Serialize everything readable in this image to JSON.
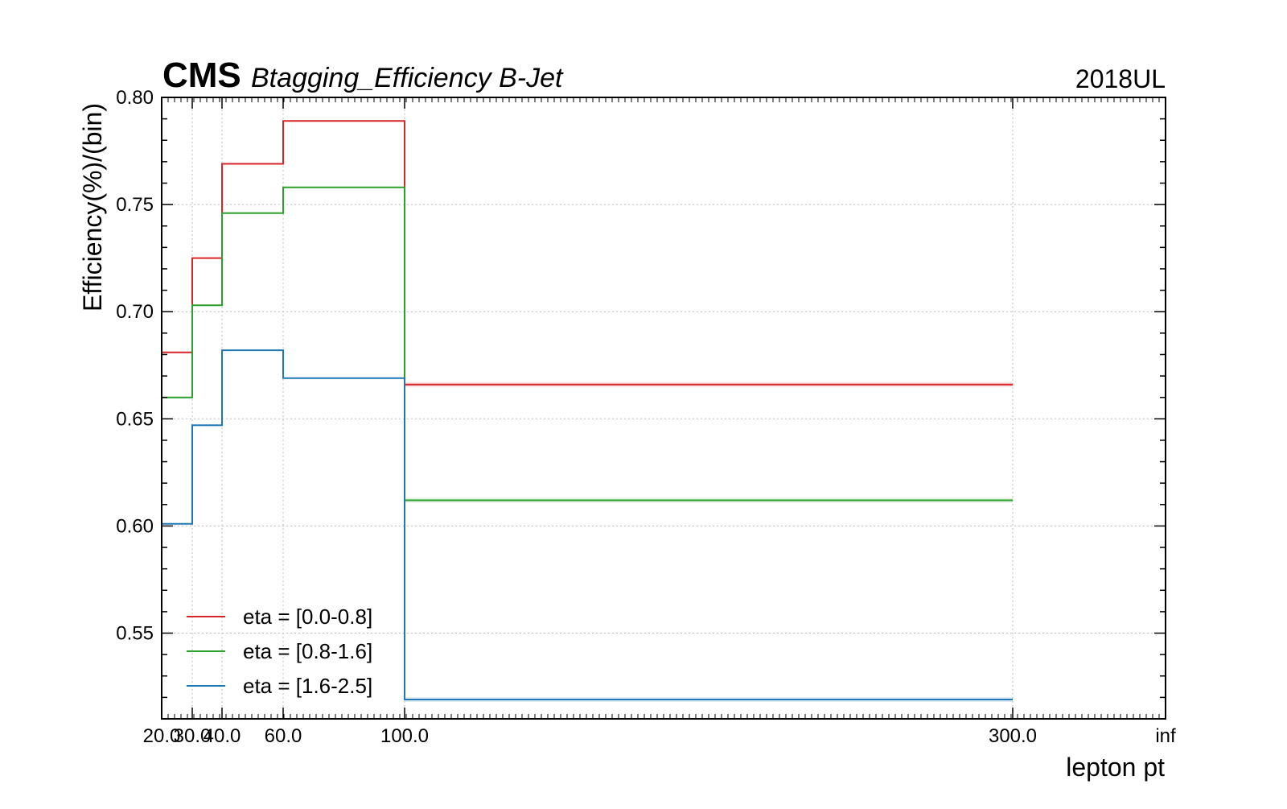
{
  "header": {
    "experiment": "CMS",
    "subtitle": "Btagging_Efficiency B-Jet",
    "era": "2018UL"
  },
  "colors": {
    "red": "#d62728",
    "green": "#2ca02c",
    "blue": "#1f77b4",
    "grid": "#bdbdbd",
    "axis": "#000000"
  },
  "chart_data": {
    "type": "line",
    "style": "step-histogram",
    "title": "CMS Btagging_Efficiency B-Jet",
    "xlabel": "lepton pt",
    "ylabel": "Efficiency(%)/(bin)",
    "ylim": [
      0.51,
      0.8
    ],
    "x_bin_edges": [
      "20.0",
      "30.0",
      "40.0",
      "60.0",
      "100.0",
      "300.0",
      "inf"
    ],
    "x_tick_labels": [
      "20.0",
      "30.0",
      "40.0",
      "60.0",
      "100.0",
      "300.0",
      "inf"
    ],
    "y_ticks": [
      0.55,
      0.6,
      0.65,
      0.7,
      0.75,
      0.8
    ],
    "y_tick_labels": [
      "0.55",
      "0.60",
      "0.65",
      "0.70",
      "0.75",
      "0.80"
    ],
    "grid": true,
    "legend_position": "bottom-left",
    "series": [
      {
        "name": "eta = [0.0-0.8]",
        "color": "red",
        "values": [
          0.681,
          0.725,
          0.769,
          0.789,
          0.666
        ]
      },
      {
        "name": "eta = [0.8-1.6]",
        "color": "green",
        "values": [
          0.66,
          0.703,
          0.746,
          0.758,
          0.612
        ]
      },
      {
        "name": "eta = [1.6-2.5]",
        "color": "blue",
        "values": [
          0.601,
          0.647,
          0.682,
          0.669,
          0.519
        ]
      }
    ]
  }
}
